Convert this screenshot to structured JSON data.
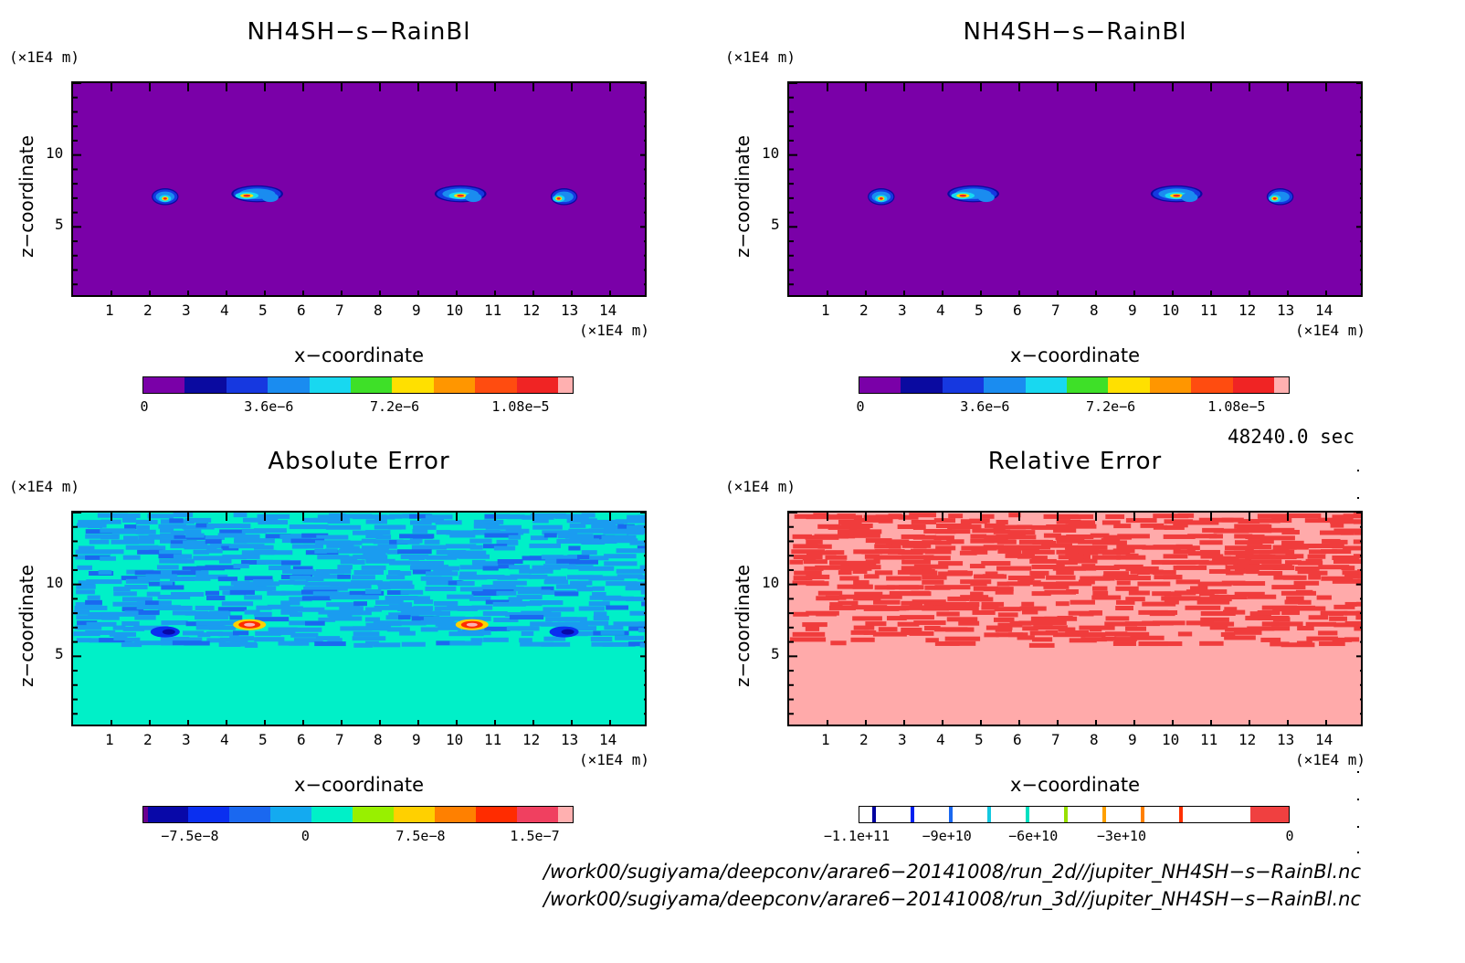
{
  "panels": [
    {
      "id": "tl",
      "title": "NH4SH−s−RainBl",
      "unit_y": "(×1E4 m)",
      "unit_x": "(×1E4 m)",
      "ylabel": "z−coordinate",
      "xlabel": "x−coordinate",
      "x_ticks": [
        "1",
        "2",
        "3",
        "4",
        "5",
        "6",
        "7",
        "8",
        "9",
        "10",
        "11",
        "12",
        "13",
        "14"
      ],
      "y_ticks": [
        "5",
        "10"
      ],
      "field": "mixing-ratio",
      "colorbar": {
        "colors": [
          "#7a00a8",
          "#0a0aa0",
          "#1638e0",
          "#1a8cf0",
          "#18d8f0",
          "#3ee028",
          "#ffe000",
          "#ff9600",
          "#ff4c10",
          "#f02424",
          "#ffb0b0"
        ],
        "labels": [
          "0",
          "3.6e−6",
          "7.2e−6",
          "1.08e−5"
        ],
        "label_values": [
          0,
          3.6e-06,
          7.2e-06,
          1.08e-05
        ]
      }
    },
    {
      "id": "tr",
      "title": "NH4SH−s−RainBl",
      "unit_y": "(×1E4 m)",
      "unit_x": "(×1E4 m)",
      "ylabel": "z−coordinate",
      "xlabel": "x−coordinate",
      "x_ticks": [
        "1",
        "2",
        "3",
        "4",
        "5",
        "6",
        "7",
        "8",
        "9",
        "10",
        "11",
        "12",
        "13",
        "14"
      ],
      "y_ticks": [
        "5",
        "10"
      ],
      "field": "mixing-ratio",
      "colorbar": {
        "colors": [
          "#7a00a8",
          "#0a0aa0",
          "#1638e0",
          "#1a8cf0",
          "#18d8f0",
          "#3ee028",
          "#ffe000",
          "#ff9600",
          "#ff4c10",
          "#f02424",
          "#ffb0b0"
        ],
        "labels": [
          "0",
          "3.6e−6",
          "7.2e−6",
          "1.08e−5"
        ],
        "label_values": [
          0,
          3.6e-06,
          7.2e-06,
          1.08e-05
        ]
      }
    },
    {
      "id": "bl",
      "title": "Absolute Error",
      "unit_y": "(×1E4 m)",
      "unit_x": "(×1E4 m)",
      "ylabel": "z−coordinate",
      "xlabel": "x−coordinate",
      "x_ticks": [
        "1",
        "2",
        "3",
        "4",
        "5",
        "6",
        "7",
        "8",
        "9",
        "10",
        "11",
        "12",
        "13",
        "14"
      ],
      "y_ticks": [
        "5",
        "10"
      ],
      "field": "absolute-error",
      "colorbar": {
        "colors": [
          "#6a0090",
          "#0808a8",
          "#0a2ff0",
          "#1a68f0",
          "#14aaf0",
          "#00f0c8",
          "#98f000",
          "#ffd000",
          "#ff8000",
          "#ff2c00",
          "#f04060",
          "#ffb0b0"
        ],
        "labels": [
          "−7.5e−8",
          "0",
          "7.5e−8",
          "1.5e−7"
        ],
        "label_values": [
          -7.5e-08,
          0,
          7.5e-08,
          1.5e-07
        ]
      }
    },
    {
      "id": "br",
      "title": "Relative Error",
      "unit_y": "(×1E4 m)",
      "unit_x": "(×1E4 m)",
      "ylabel": "z−coordinate",
      "xlabel": "x−coordinate",
      "x_ticks": [
        "1",
        "2",
        "3",
        "4",
        "5",
        "6",
        "7",
        "8",
        "9",
        "10",
        "11",
        "12",
        "13",
        "14"
      ],
      "y_ticks": [
        "5",
        "10"
      ],
      "field": "relative-error",
      "colorbar": {
        "colors": [
          "#ffffff",
          "#ffffff",
          "#ffffff",
          "#ffffff",
          "#ffffff",
          "#ffffff",
          "#ffffff",
          "#ffffff",
          "#ffffff",
          "#ffffff",
          "#ffffff",
          "#f04040"
        ],
        "stripes": [
          "#0000a0",
          "#0020f0",
          "#1a68f0",
          "#14c8e0",
          "#00e0c0",
          "#98e000",
          "#ffa000",
          "#ff8000",
          "#ff3000"
        ],
        "labels": [
          "−1.1e+11",
          "−9e+10",
          "−6e+10",
          "−3e+10",
          "0"
        ],
        "label_values": [
          -110000000000.0,
          -90000000000.0,
          -60000000000.0,
          -30000000000.0,
          0
        ]
      }
    }
  ],
  "timestamp": "48240.0 sec",
  "paths": [
    "/work00/sugiyama/deepconv/arare6−20141008/run_2d//jupiter_NH4SH−s−RainBl.nc",
    "/work00/sugiyama/deepconv/arare6−20141008/run_3d//jupiter_NH4SH−s−RainBl.nc"
  ],
  "chart_data": [
    {
      "type": "heatmap",
      "title": "NH4SH−s−RainBl",
      "xlabel": "x−coordinate",
      "ylabel": "z−coordinate",
      "x_unit": "×1E4 m",
      "y_unit": "×1E4 m",
      "xlim": [
        0,
        15
      ],
      "ylim": [
        0,
        15
      ],
      "color_range": [
        0,
        1.26e-05
      ],
      "features": [
        {
          "x": 2.4,
          "z": 7.1,
          "peak": 9e-06
        },
        {
          "x": 4.8,
          "z": 7.3,
          "peak": 1.1e-05
        },
        {
          "x": 10.1,
          "z": 7.3,
          "peak": 1.1e-05
        },
        {
          "x": 12.8,
          "z": 7.1,
          "peak": 9e-06
        }
      ]
    },
    {
      "type": "heatmap",
      "title": "NH4SH−s−RainBl",
      "xlabel": "x−coordinate",
      "ylabel": "z−coordinate",
      "x_unit": "×1E4 m",
      "y_unit": "×1E4 m",
      "xlim": [
        0,
        15
      ],
      "ylim": [
        0,
        15
      ],
      "color_range": [
        0,
        1.26e-05
      ],
      "features": [
        {
          "x": 2.4,
          "z": 7.1,
          "peak": 9e-06
        },
        {
          "x": 4.8,
          "z": 7.3,
          "peak": 1.1e-05
        },
        {
          "x": 10.1,
          "z": 7.3,
          "peak": 1.1e-05
        },
        {
          "x": 12.8,
          "z": 7.1,
          "peak": 9e-06
        }
      ]
    },
    {
      "type": "heatmap",
      "title": "Absolute Error",
      "xlabel": "x−coordinate",
      "ylabel": "z−coordinate",
      "x_unit": "×1E4 m",
      "y_unit": "×1E4 m",
      "xlim": [
        0,
        15
      ],
      "ylim": [
        0,
        15
      ],
      "color_range": [
        -1e-07,
        1.8e-07
      ]
    },
    {
      "type": "heatmap",
      "title": "Relative Error",
      "xlabel": "x−coordinate",
      "ylabel": "z−coordinate",
      "x_unit": "×1E4 m",
      "y_unit": "×1E4 m",
      "xlim": [
        0,
        15
      ],
      "ylim": [
        0,
        15
      ],
      "color_range": [
        -120000000000.0,
        0
      ]
    }
  ]
}
